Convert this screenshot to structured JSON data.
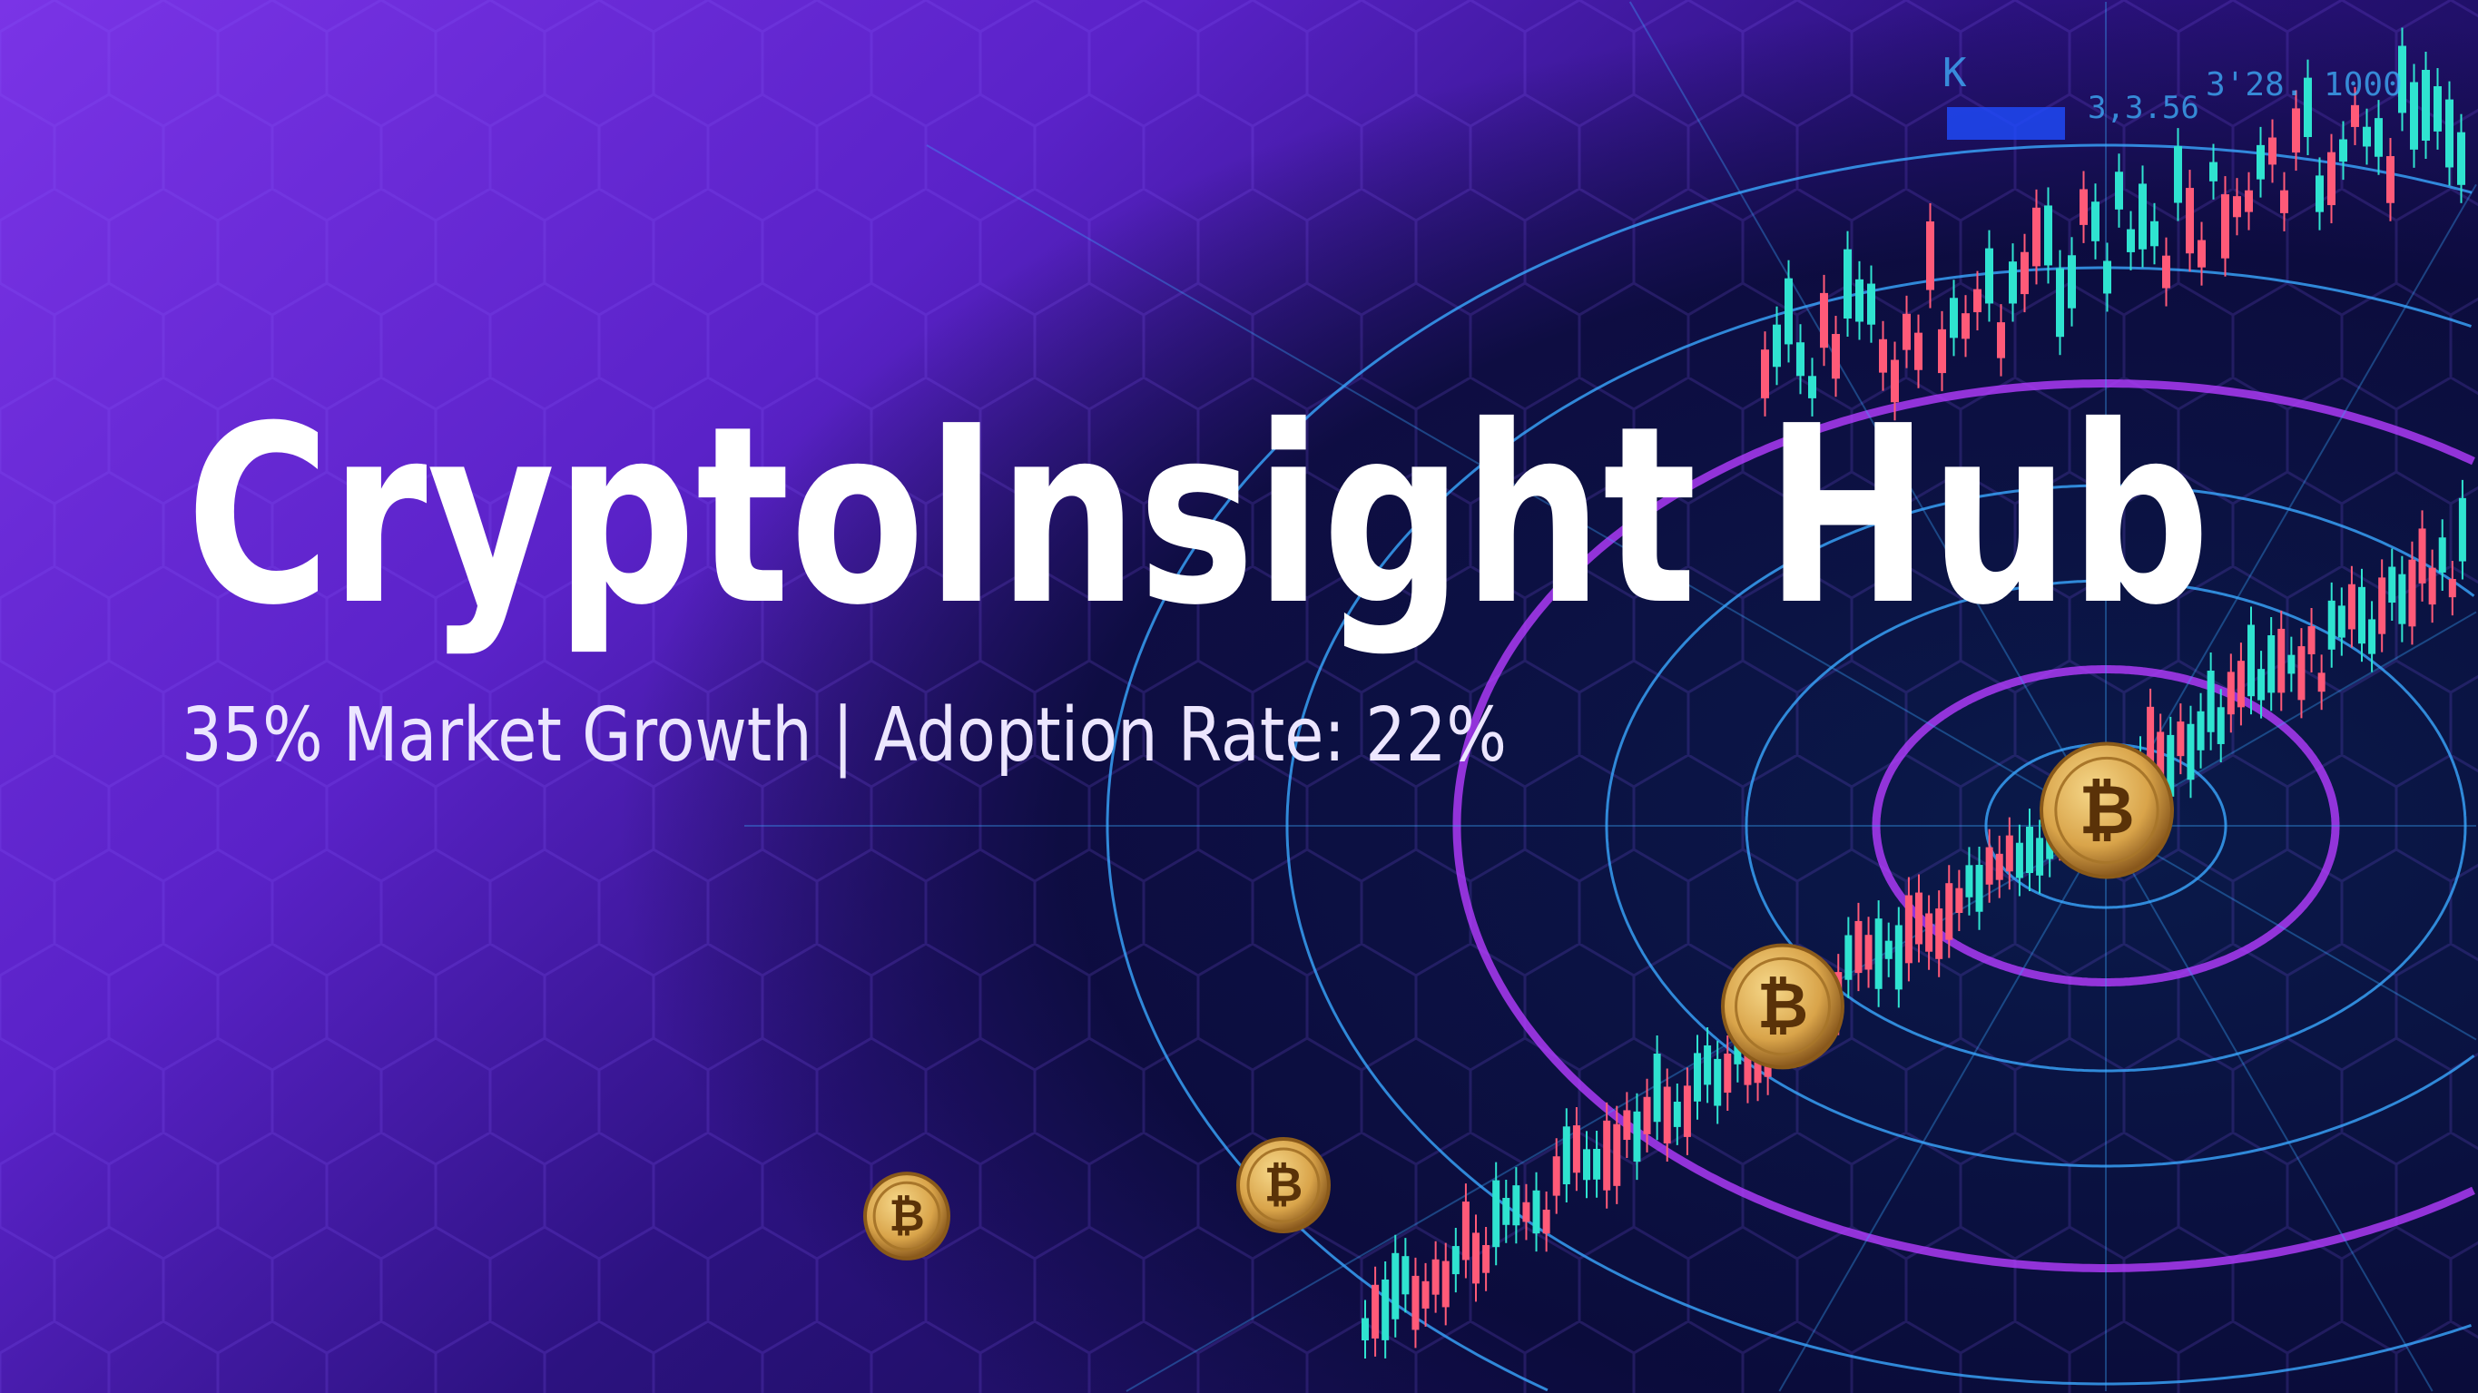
{
  "hero": {
    "title": "CryptoInsight Hub",
    "subtitle": "35% Market Growth | Adoption Rate: 22%"
  },
  "decor": {
    "ticker_labels": [
      "K",
      "3,3.56",
      "3'28. 1000"
    ]
  },
  "colors": {
    "purple_bg": "#6a2ad8",
    "deep_purple": "#3a1590",
    "navy": "#0a0a35",
    "candle_up": "#2fe3d0",
    "candle_down": "#ff5a78",
    "ring_magenta": "#b43cff",
    "ring_blue": "#3aa8ff",
    "coin_gold": "#d9a44a"
  },
  "icons": [
    "hexagon-grid",
    "candlestick-chart",
    "radar-rings",
    "bitcoin-coin"
  ]
}
